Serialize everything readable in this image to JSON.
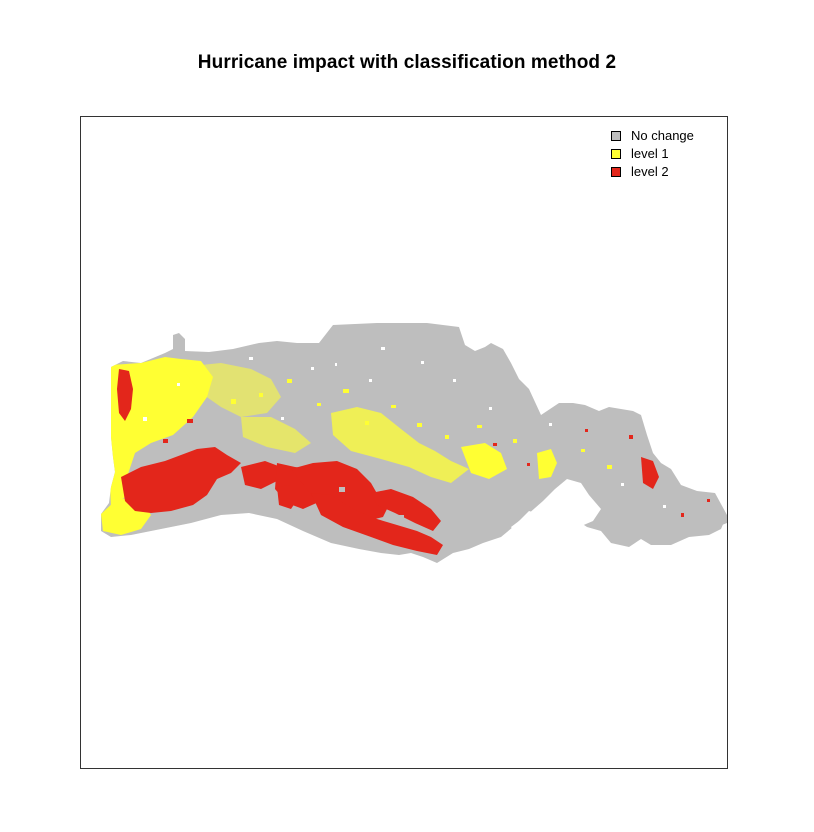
{
  "title": "Hurricane impact with classification method 2",
  "legend": {
    "items": [
      {
        "label": "No change",
        "color": "#bebebe"
      },
      {
        "label": "level 1",
        "color": "#ffff33"
      },
      {
        "label": "level 2",
        "color": "#e3261b"
      }
    ]
  },
  "colors": {
    "no_change": "#bebebe",
    "level_1": "#ffff33",
    "level_2": "#e3261b"
  }
}
